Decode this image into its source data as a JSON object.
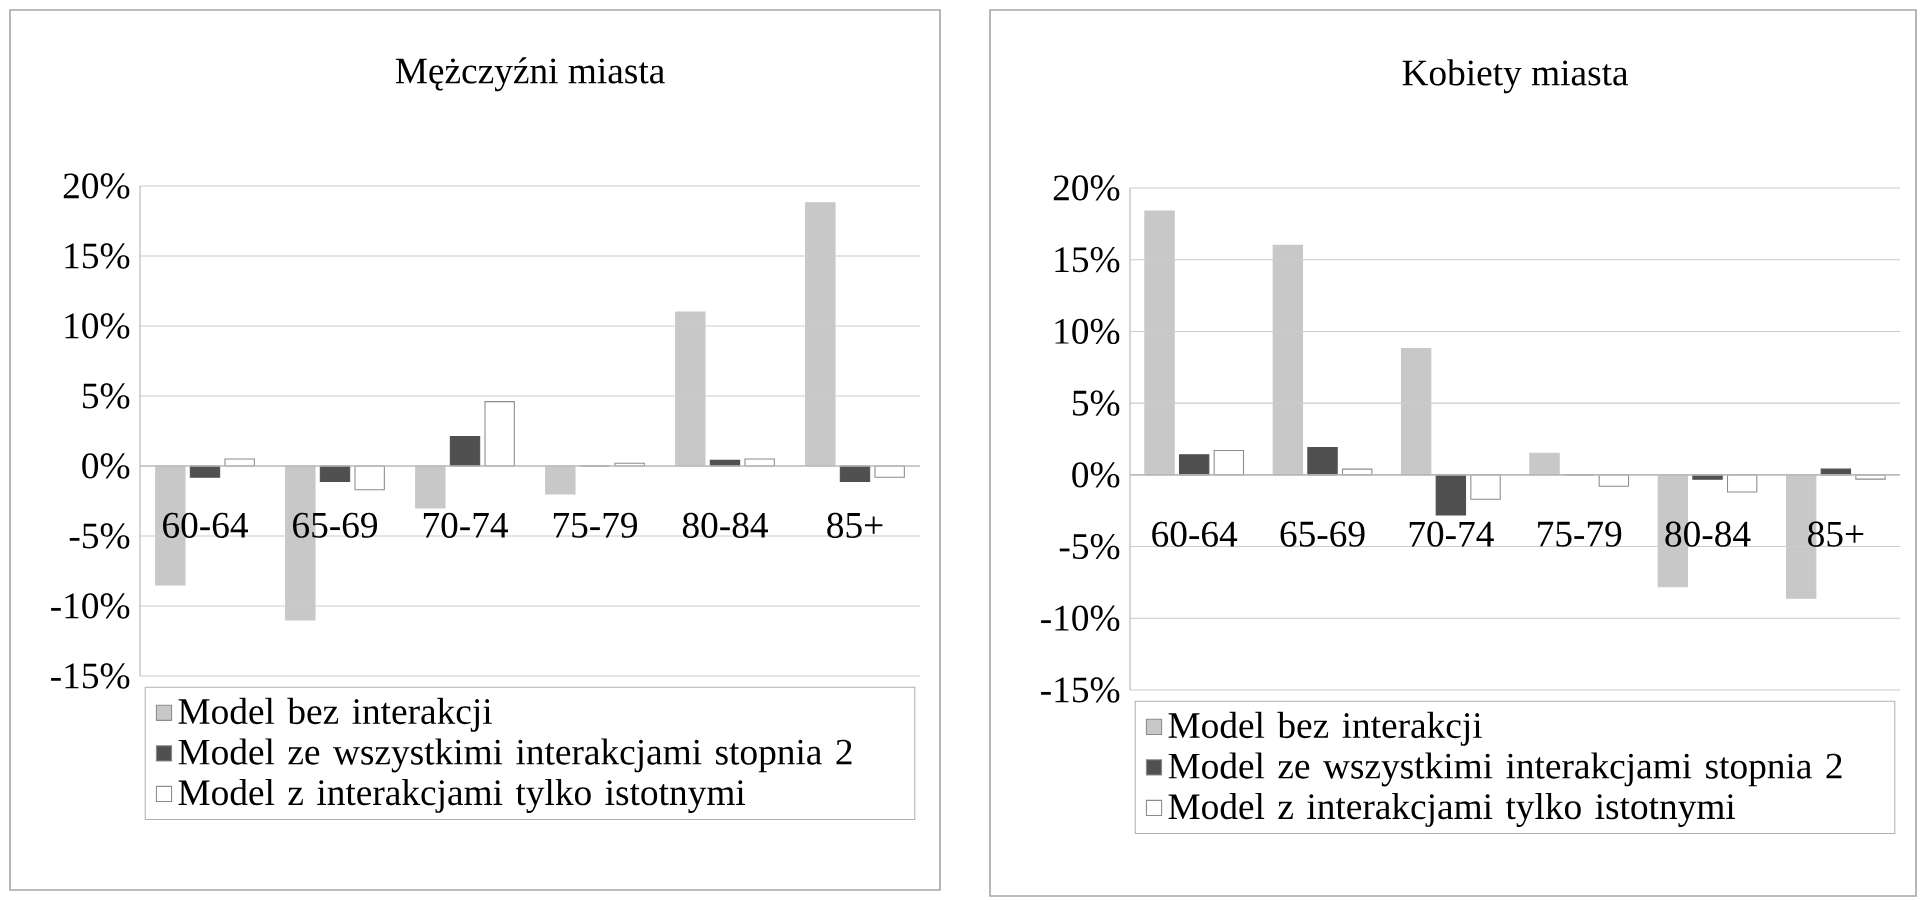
{
  "chart_data": [
    {
      "type": "bar",
      "title": "Mężczyźni miasta",
      "categories": [
        "60-64",
        "65-69",
        "70-74",
        "75-79",
        "80-84",
        "85+"
      ],
      "series": [
        {
          "name": "Model bez interakcji",
          "color": "#c8c8c8",
          "values": [
            -8.5,
            -11,
            -3,
            -2,
            11,
            18.8
          ]
        },
        {
          "name": "Model ze wszystkimi interakcjami stopnia 2",
          "color": "#505050",
          "values": [
            -0.8,
            -1.1,
            2.1,
            0,
            0.4,
            -1.1
          ]
        },
        {
          "name": "Model z interakcjami tylko istotnymi",
          "color": "#ffffff",
          "values": [
            0.5,
            -1.7,
            4.6,
            0.2,
            0.5,
            -0.8
          ]
        }
      ],
      "ylim": [
        -15,
        20
      ],
      "yticks": [
        {
          "value": -15,
          "label": "-15%"
        },
        {
          "value": -10,
          "label": "-10%"
        },
        {
          "value": -5,
          "label": "-5%"
        },
        {
          "value": 0,
          "label": "0%"
        },
        {
          "value": 5,
          "label": "5%"
        },
        {
          "value": 10,
          "label": "10%"
        },
        {
          "value": 15,
          "label": "15%"
        },
        {
          "value": 20,
          "label": "20%"
        }
      ],
      "grid": "y",
      "legend": "bottom"
    },
    {
      "type": "bar",
      "title": "Kobiety miasta",
      "categories": [
        "60-64",
        "65-69",
        "70-74",
        "75-79",
        "80-84",
        "85+"
      ],
      "series": [
        {
          "name": "Model bez interakcji",
          "color": "#c8c8c8",
          "values": [
            18.4,
            16.0,
            8.8,
            1.5,
            -7.8,
            -8.6
          ]
        },
        {
          "name": "Model ze wszystkimi interakcjami stopnia 2",
          "color": "#505050",
          "values": [
            1.4,
            1.9,
            -2.8,
            0,
            -0.3,
            0.4
          ]
        },
        {
          "name": "Model z interakcjami tylko istotnymi",
          "color": "#ffffff",
          "values": [
            1.7,
            0.4,
            -1.7,
            -0.8,
            -1.2,
            -0.3
          ]
        }
      ],
      "ylim": [
        -15,
        20
      ],
      "yticks": [
        {
          "value": -15,
          "label": "-15%"
        },
        {
          "value": -10,
          "label": "-10%"
        },
        {
          "value": -5,
          "label": "-5%"
        },
        {
          "value": 0,
          "label": "0%"
        },
        {
          "value": 5,
          "label": "5%"
        },
        {
          "value": 10,
          "label": "10%"
        },
        {
          "value": 15,
          "label": "15%"
        },
        {
          "value": 20,
          "label": "20%"
        }
      ],
      "grid": "y",
      "legend": "bottom"
    }
  ]
}
